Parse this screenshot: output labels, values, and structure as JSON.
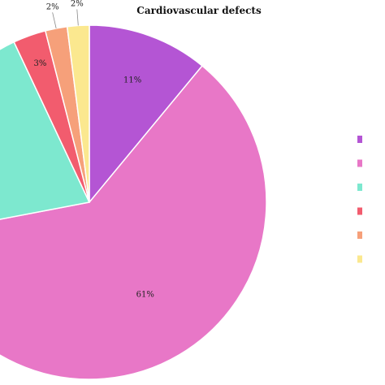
{
  "chart_data": {
    "type": "pie",
    "title": "Cardiovascular defects",
    "categories": [
      "",
      "",
      "",
      "",
      "",
      ""
    ],
    "values": [
      11,
      61,
      21,
      3,
      2,
      2
    ],
    "labels": [
      "11%",
      "61%",
      "",
      "3%",
      "2%",
      "2%"
    ],
    "colors": [
      "#b455d4",
      "#e877c7",
      "#7de8cf",
      "#f25c6e",
      "#f6a07a",
      "#fbe88f"
    ],
    "legend_placement": "right"
  }
}
